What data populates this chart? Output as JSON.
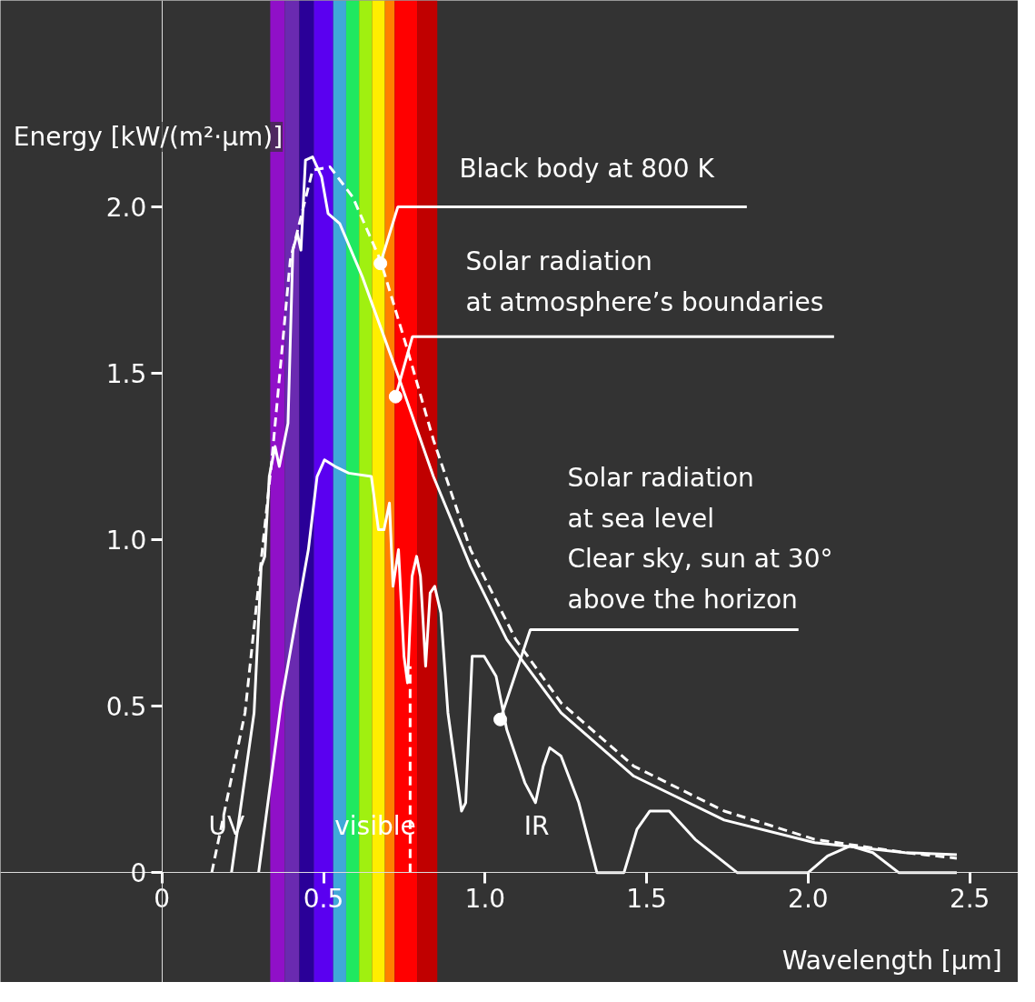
{
  "chart_data": {
    "type": "line",
    "xlabel": "Wavelength [µm]",
    "ylabel": "Energy [kW/(m²·µm)]",
    "xlim": [
      -0.5,
      2.65
    ],
    "ylim": [
      -0.33,
      2.62
    ],
    "xticks": [
      0,
      0.5,
      {
        "value": 1,
        "label": "1.0"
      },
      1.5,
      {
        "value": 2,
        "label": "2.0"
      },
      2.5
    ],
    "yticks": [
      0,
      0.5,
      {
        "value": 1,
        "label": "1.0"
      },
      1.5,
      {
        "value": 2,
        "label": "2.0"
      }
    ],
    "grid": false,
    "marker": "none",
    "series": [
      {
        "color": "#ffffff",
        "line_style": "dashed",
        "x": [
          0.154,
          0.257,
          0.34,
          0.397,
          0.466,
          0.52,
          0.59,
          0.676,
          0.76,
          0.84,
          0.955,
          1.095,
          1.235,
          1.46,
          1.74,
          2.02,
          2.3,
          2.46
        ],
        "values": [
          0,
          0.48,
          1.24,
          1.84,
          2.11,
          2.12,
          2.03,
          1.84,
          1.57,
          1.3,
          0.97,
          0.7,
          0.51,
          0.32,
          0.185,
          0.1,
          0.06,
          0.043
        ]
      },
      {
        "color": "#ffffff",
        "line_style": "solid",
        "x": [
          0.215,
          0.285,
          0.307,
          0.318,
          0.332,
          0.35,
          0.363,
          0.39,
          0.405,
          0.419,
          0.43,
          0.444,
          0.466,
          0.494,
          0.514,
          0.55,
          0.62,
          0.732,
          0.84,
          0.955,
          1.067,
          1.235,
          1.46,
          1.74,
          2.02,
          2.3,
          2.46
        ],
        "values": [
          0,
          0.48,
          0.92,
          0.95,
          1.19,
          1.28,
          1.22,
          1.35,
          1.87,
          1.92,
          1.87,
          2.14,
          2.15,
          2.09,
          1.98,
          1.95,
          1.79,
          1.49,
          1.19,
          0.92,
          0.7,
          0.48,
          0.29,
          0.158,
          0.09,
          0.06,
          0.054
        ]
      },
      {
        "color": "#ffffff",
        "line_style": "solid",
        "x": [
          0.299,
          0.369,
          0.453,
          0.48,
          0.503,
          0.536,
          0.578,
          0.648,
          0.67,
          0.687,
          0.704,
          0.715,
          0.732,
          0.749,
          0.76,
          0.774,
          0.788,
          0.8,
          0.816,
          0.83,
          0.844,
          0.863,
          0.885,
          0.927,
          0.94,
          0.96,
          0.997,
          1.034,
          1.067,
          1.123,
          1.156,
          1.18,
          1.2,
          1.235,
          1.29,
          1.346,
          1.43,
          1.47,
          1.51,
          1.57,
          1.65,
          1.78,
          2.0,
          2.06,
          2.13,
          2.2,
          2.28,
          2.46
        ],
        "values": [
          0,
          0.51,
          0.97,
          1.19,
          1.24,
          1.22,
          1.2,
          1.19,
          1.03,
          1.03,
          1.11,
          0.86,
          0.97,
          0.65,
          0.57,
          0.89,
          0.95,
          0.89,
          0.62,
          0.84,
          0.86,
          0.78,
          0.48,
          0.185,
          0.21,
          0.65,
          0.65,
          0.59,
          0.43,
          0.27,
          0.21,
          0.32,
          0.375,
          0.35,
          0.21,
          0,
          0,
          0.13,
          0.185,
          0.185,
          0.1,
          0,
          0,
          0.05,
          0.08,
          0.06,
          0,
          0
        ]
      },
      {
        "color": "#ffffff",
        "line_style": "dashed",
        "x": [
          0.768,
          0.768
        ],
        "values": [
          0,
          0.62
        ]
      }
    ],
    "bands": [
      {
        "axis": "x",
        "from": 0.335,
        "to": 0.38,
        "color": "#9010c8"
      },
      {
        "axis": "x",
        "from": 0.38,
        "to": 0.425,
        "color": "#6a2ab0"
      },
      {
        "axis": "x",
        "from": 0.425,
        "to": 0.47,
        "color": "#2a0098"
      },
      {
        "axis": "x",
        "from": 0.47,
        "to": 0.53,
        "color": "#5a00f0"
      },
      {
        "axis": "x",
        "from": 0.53,
        "to": 0.57,
        "color": "#40a8d8"
      },
      {
        "axis": "x",
        "from": 0.57,
        "to": 0.61,
        "color": "#20e860"
      },
      {
        "axis": "x",
        "from": 0.61,
        "to": 0.65,
        "color": "#a0f010"
      },
      {
        "axis": "x",
        "from": 0.65,
        "to": 0.69,
        "color": "#ffee00"
      },
      {
        "axis": "x",
        "from": 0.69,
        "to": 0.72,
        "color": "#ff8000"
      },
      {
        "axis": "x",
        "from": 0.72,
        "to": 0.79,
        "color": "#ff0000"
      },
      {
        "axis": "x",
        "from": 0.79,
        "to": 0.852,
        "color": "#c00000"
      }
    ],
    "annotations": [
      {
        "text": "Black body at 800 K",
        "x": 0.676,
        "y": 1.83
      },
      {
        "text": "Solar radiation\nat atmosphere’s boundaries",
        "x": 0.723,
        "y": 1.43
      },
      {
        "text": "Solar radiation\nat sea level\nClear sky, sun at 30°\nabove the horizon",
        "x": 1.047,
        "y": 0.46
      },
      "UV",
      "visible",
      "IR"
    ]
  }
}
